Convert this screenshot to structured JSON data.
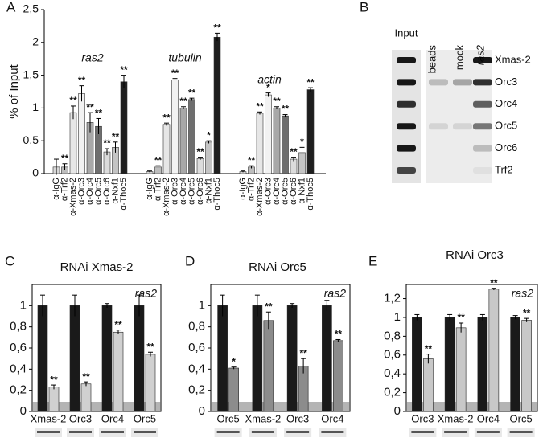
{
  "chart_data": [
    {
      "type": "grouped-bar",
      "panel": "A",
      "ylabel": "% of Input",
      "categories": [
        "α-IgG",
        "α-Trf2",
        "α-Xmas-2",
        "α-Orc3",
        "α-Orc4",
        "α-Orc5",
        "α-Orc6",
        "α-Nxf1",
        "α-Thoc5"
      ],
      "colors": [
        "#d8d8d8",
        "#bdbdbd",
        "#e6e6e6",
        "#f2f2f2",
        "#a8a8a8",
        "#6e6e6e",
        "#dcdcdc",
        "#c4c4c4",
        "#1e1e1e"
      ],
      "groups": [
        {
          "name": "ras2",
          "values": [
            0.1,
            0.1,
            0.93,
            1.22,
            0.78,
            0.72,
            0.33,
            0.4,
            1.4
          ],
          "errors": [
            0.12,
            0.05,
            0.1,
            0.12,
            0.15,
            0.12,
            0.05,
            0.08,
            0.1
          ],
          "stars": [
            null,
            "**",
            "**",
            "**",
            "**",
            "**",
            "**",
            "**",
            "**"
          ]
        },
        {
          "name": "tubulin",
          "values": [
            0.03,
            0.1,
            0.75,
            1.43,
            1.0,
            1.13,
            0.23,
            0.48,
            2.08
          ],
          "errors": [
            0.01,
            0.02,
            0.02,
            0.02,
            0.02,
            0.02,
            0.02,
            0.02,
            0.06
          ],
          "stars": [
            null,
            "**",
            "**",
            "**",
            "**",
            "**",
            "**",
            "*",
            "**"
          ]
        },
        {
          "name": "actin",
          "values": [
            0.03,
            0.1,
            0.92,
            1.2,
            1.0,
            0.88,
            0.22,
            0.32,
            1.28
          ],
          "errors": [
            0.01,
            0.02,
            0.02,
            0.03,
            0.02,
            0.02,
            0.03,
            0.08,
            0.03
          ],
          "stars": [
            null,
            "**",
            "**",
            "*",
            "**",
            "**",
            "**",
            "*",
            "**"
          ]
        }
      ],
      "ylim": [
        0,
        2.5
      ],
      "yticks": [
        0,
        {
          "value": 0.5,
          "label": "0,5"
        },
        1,
        {
          "value": 1.5,
          "label": "1,5"
        },
        2,
        {
          "value": 2.5,
          "label": "2,5"
        }
      ]
    },
    {
      "type": "bar",
      "panel": "C",
      "title": "RNAi Xmas-2",
      "annotation": "ras2",
      "categories": [
        "Xmas-2",
        "Orc3",
        "Orc4",
        "Orc5"
      ],
      "series": [
        {
          "color": "#1a1a1a",
          "values": [
            1,
            1,
            1,
            1
          ],
          "errors": [
            0.1,
            0.1,
            0.02,
            0.1
          ],
          "stars": [
            null,
            null,
            null,
            null
          ]
        },
        {
          "color": "#d0d0d0",
          "values": [
            0.23,
            0.26,
            0.75,
            0.54
          ],
          "errors": [
            0.02,
            0.02,
            0.02,
            0.02
          ],
          "stars": [
            "**",
            "**",
            "**",
            "**"
          ]
        }
      ],
      "ylim": [
        0,
        1.2
      ],
      "yticks": [
        0,
        {
          "value": 0.2,
          "label": "0,2"
        },
        {
          "value": 0.4,
          "label": "0,4"
        },
        {
          "value": 0.6,
          "label": "0,6"
        },
        {
          "value": 0.8,
          "label": "0,8"
        },
        1
      ]
    },
    {
      "type": "bar",
      "panel": "D",
      "title": "RNAi Orc5",
      "annotation": "ras2",
      "categories": [
        "Orc5",
        "Xmas-2",
        "Orc3",
        "Orc4"
      ],
      "series": [
        {
          "color": "#1a1a1a",
          "values": [
            1,
            1,
            1,
            1
          ],
          "errors": [
            0.1,
            0.1,
            0.02,
            0.05
          ],
          "stars": [
            null,
            null,
            null,
            null
          ]
        },
        {
          "color": "#8c8c8c",
          "values": [
            0.41,
            0.86,
            0.43,
            0.67
          ],
          "errors": [
            0.01,
            0.08,
            0.07,
            0.01
          ],
          "stars": [
            "*",
            "**",
            "**",
            "**"
          ]
        }
      ],
      "ylim": [
        0,
        1.2
      ],
      "yticks": [
        0,
        {
          "value": 0.2,
          "label": "0,2"
        },
        {
          "value": 0.4,
          "label": "0,4"
        },
        {
          "value": 0.6,
          "label": "0,6"
        },
        {
          "value": 0.8,
          "label": "0,8"
        },
        1
      ]
    },
    {
      "type": "bar",
      "panel": "E",
      "title": "RNAi Orc3",
      "annotation": "ras2",
      "categories": [
        "Orc3",
        "Xmas-2",
        "Orc4",
        "Orc5"
      ],
      "series": [
        {
          "color": "#1a1a1a",
          "values": [
            1,
            1,
            1,
            1
          ],
          "errors": [
            0.03,
            0.03,
            0.03,
            0.02
          ],
          "stars": [
            null,
            null,
            null,
            null
          ]
        },
        {
          "color": "#c8c8c8",
          "values": [
            0.56,
            0.89,
            1.3,
            0.97
          ],
          "errors": [
            0.05,
            0.05,
            0.01,
            0.02
          ],
          "stars": [
            "**",
            "**",
            "**",
            "**"
          ]
        }
      ],
      "ylim": [
        0,
        1.35
      ],
      "yticks": [
        0,
        {
          "value": 0.2,
          "label": "0,2"
        },
        {
          "value": 0.4,
          "label": "0,4"
        },
        {
          "value": 0.6,
          "label": "0,6"
        },
        {
          "value": 0.8,
          "label": "0,8"
        },
        1,
        {
          "value": 1.2,
          "label": "1,2"
        }
      ]
    }
  ],
  "blot": {
    "panel": "B",
    "lanes": [
      "Input",
      "beads",
      "mock",
      "ras2"
    ],
    "rows": [
      "Xmas-2",
      "Orc3",
      "Orc4",
      "Orc5",
      "Orc6",
      "Trf2"
    ]
  }
}
